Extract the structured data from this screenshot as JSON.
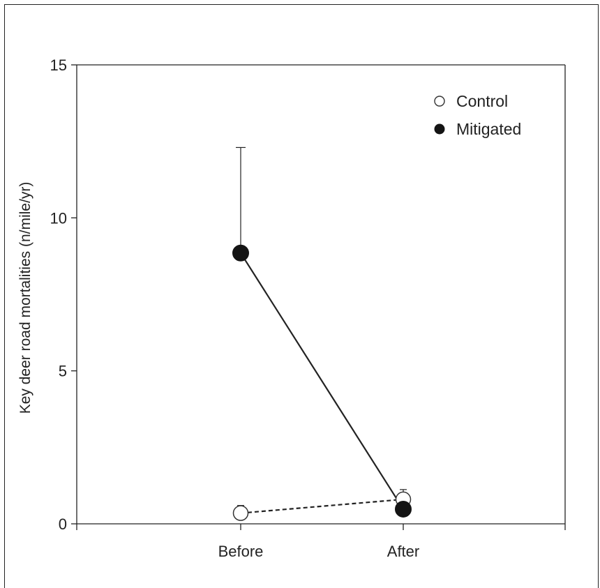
{
  "chart_data": {
    "type": "line",
    "title": "",
    "xlabel": "",
    "ylabel": "Key deer road mortalities (n/mile/yr)",
    "categories": [
      "Before",
      "After"
    ],
    "ylim": [
      0,
      15
    ],
    "yticks": [
      0,
      5,
      10,
      15
    ],
    "legend_position": "top-right",
    "series": [
      {
        "name": "Control",
        "marker": "open-circle",
        "line_style": "dashed",
        "color": "#222222",
        "values": [
          0.35,
          0.8
        ],
        "error_upper": [
          0.6,
          1.12
        ]
      },
      {
        "name": "Mitigated",
        "marker": "filled-circle",
        "line_style": "solid",
        "color": "#222222",
        "values": [
          8.85,
          0.48
        ],
        "error_upper": [
          12.3,
          0.75
        ]
      }
    ]
  }
}
